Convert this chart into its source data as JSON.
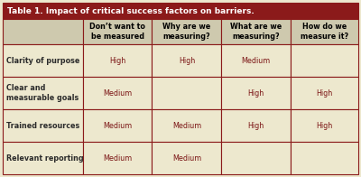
{
  "title": "Table 1. Impact of critical success factors on barriers.",
  "title_bg": "#8B1A1A",
  "title_color": "#FFFFFF",
  "header_bg": "#CEC9AE",
  "header_color": "#000000",
  "row_bg": "#EDE8CE",
  "row_label_color": "#2B2B2B",
  "cell_value_color": "#7B1515",
  "border_color": "#8B1A1A",
  "col_headers": [
    "Don’t want to\nbe measured",
    "Why are we\nmeasuring?",
    "What are we\nmeasuring?",
    "How do we\nmeasure it?"
  ],
  "row_labels": [
    "Clarity of purpose",
    "Clear and\nmeasurable goals",
    "Trained resources",
    "Relevant reporting"
  ],
  "cell_data": [
    [
      "High",
      "High",
      "Medium",
      ""
    ],
    [
      "Medium",
      "",
      "High",
      "High"
    ],
    [
      "Medium",
      "Medium",
      "High",
      "High"
    ],
    [
      "Medium",
      "Medium",
      "",
      ""
    ]
  ],
  "figsize": [
    4.0,
    1.96
  ],
  "dpi": 100,
  "title_fontsize": 6.5,
  "header_fontsize": 5.8,
  "cell_fontsize": 5.8,
  "label_fontsize": 5.8
}
